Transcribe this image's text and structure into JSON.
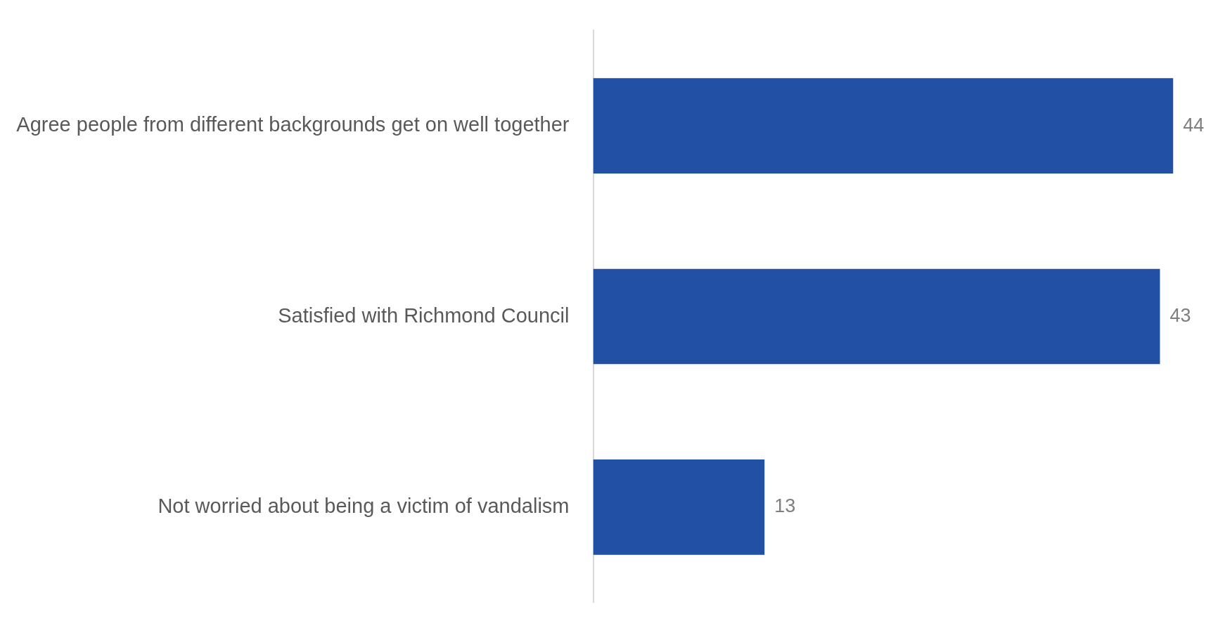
{
  "chart_data": {
    "type": "bar",
    "orientation": "horizontal",
    "categories": [
      "Agree people from different backgrounds get on well together",
      "Satisfied with Richmond Council",
      "Not worried about being a victim of vandalism"
    ],
    "values": [
      44,
      43,
      13
    ],
    "color": "#2150a4",
    "data_labels": true,
    "grid": false,
    "legend": false
  }
}
